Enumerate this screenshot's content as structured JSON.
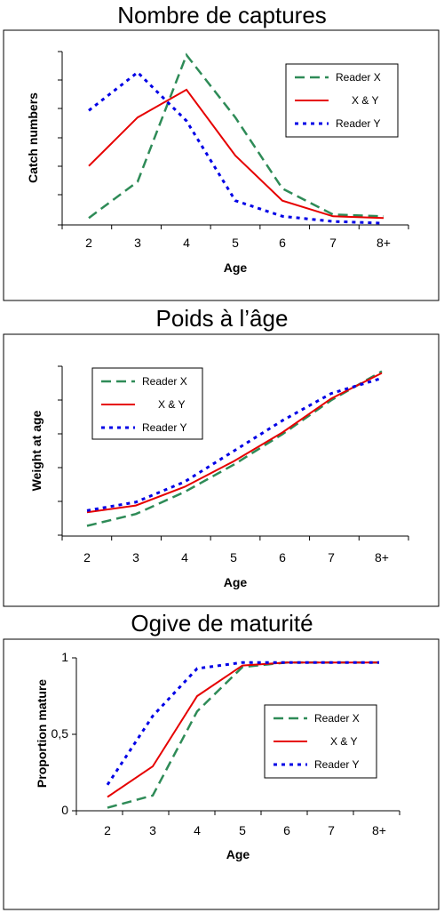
{
  "chart_data": [
    {
      "type": "line",
      "title": "Nombre de captures",
      "xlabel": "Age",
      "ylabel": "Catch numbers",
      "categories": [
        "2",
        "3",
        "4",
        "5",
        "6",
        "7",
        "8+"
      ],
      "ylim": [
        0,
        100
      ],
      "yticks": [
        "",
        "",
        "",
        "",
        "",
        "",
        ""
      ],
      "legend_position": "top-right",
      "series": [
        {
          "name": "Reader X",
          "color": "#2e8b57",
          "style": "dashed",
          "values": [
            4,
            25,
            98,
            62,
            21,
            6,
            5
          ]
        },
        {
          "name": "X & Y",
          "color": "#e60000",
          "style": "solid",
          "values": [
            34,
            62,
            78,
            40,
            14,
            5,
            4
          ]
        },
        {
          "name": "Reader Y",
          "color": "#0000e6",
          "style": "dotted",
          "values": [
            66,
            88,
            60,
            14,
            5,
            2,
            1
          ]
        }
      ]
    },
    {
      "type": "line",
      "title": "Poids à l’âge",
      "xlabel": "Age",
      "ylabel": "Weight at age",
      "categories": [
        "2",
        "3",
        "4",
        "5",
        "6",
        "7",
        "8+"
      ],
      "ylim": [
        0,
        100
      ],
      "yticks": [
        "",
        "",
        "",
        "",
        "",
        "",
        ""
      ],
      "legend_position": "top-left",
      "series": [
        {
          "name": "Reader X",
          "color": "#2e8b57",
          "style": "dashed",
          "values": [
            6,
            13,
            26,
            42,
            60,
            80,
            97
          ]
        },
        {
          "name": "X & Y",
          "color": "#e60000",
          "style": "solid",
          "values": [
            14,
            18,
            29,
            44,
            61,
            81,
            96
          ]
        },
        {
          "name": "Reader Y",
          "color": "#0000e6",
          "style": "dotted",
          "values": [
            15,
            20,
            32,
            50,
            68,
            84,
            93
          ]
        }
      ]
    },
    {
      "type": "line",
      "title": "Ogive de maturité",
      "xlabel": "Age",
      "ylabel": "Proportion mature",
      "categories": [
        "2",
        "3",
        "4",
        "5",
        "6",
        "7",
        "8+"
      ],
      "ylim": [
        0,
        1
      ],
      "yticks": [
        "0",
        "0,5",
        "1"
      ],
      "legend_position": "right",
      "series": [
        {
          "name": "Reader X",
          "color": "#2e8b57",
          "style": "dashed",
          "values": [
            0.02,
            0.1,
            0.65,
            0.94,
            0.97,
            0.97,
            0.97
          ]
        },
        {
          "name": "X & Y",
          "color": "#e60000",
          "style": "solid",
          "values": [
            0.09,
            0.29,
            0.75,
            0.95,
            0.97,
            0.97,
            0.97
          ]
        },
        {
          "name": "Reader Y",
          "color": "#0000e6",
          "style": "dotted",
          "values": [
            0.17,
            0.62,
            0.93,
            0.97,
            0.97,
            0.97,
            0.97
          ]
        }
      ]
    }
  ]
}
